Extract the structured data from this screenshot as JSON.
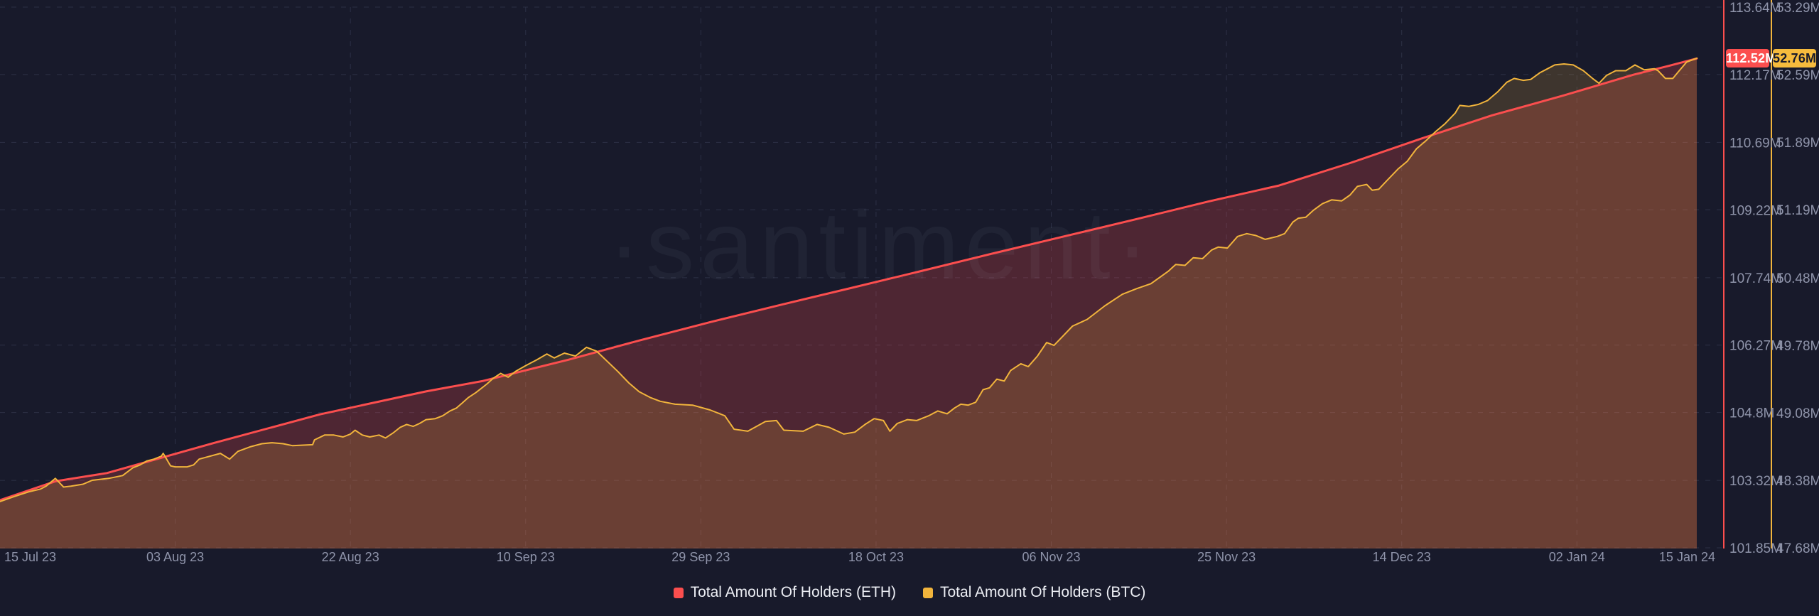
{
  "watermark": "·santiment·",
  "legend": [
    {
      "label": "Total Amount Of Holders (ETH)",
      "color": "#fb4e4e"
    },
    {
      "label": "Total Amount Of Holders (BTC)",
      "color": "#f1b43c"
    }
  ],
  "badges": {
    "eth": {
      "text": "112.52M",
      "bg": "#fb4e4e",
      "fg": "#ffffff"
    },
    "btc": {
      "text": "52.76M",
      "bg": "#f6bb3d",
      "fg": "#181a2b"
    }
  },
  "colors": {
    "background": "#181a2b",
    "grid": "#2c3046",
    "axis_text": "#8f94aa",
    "eth_line": "#fb4e4e",
    "btc_line": "#f1b43c",
    "watermark": "rgba(200,206,240,0.05)"
  },
  "chart_data": {
    "type": "area",
    "grid": true,
    "legend_position": "bottom",
    "x_axis": {
      "start_date": "2023-07-15",
      "end_date": "2024-01-15",
      "range_days": 184,
      "tick_days": [
        0,
        19,
        38,
        57,
        76,
        95,
        114,
        133,
        152,
        171,
        184
      ],
      "tick_labels": [
        "15 Jul 23",
        "03 Aug 23",
        "22 Aug 23",
        "10 Sep 23",
        "29 Sep 23",
        "18 Oct 23",
        "06 Nov 23",
        "25 Nov 23",
        "14 Dec 23",
        "02 Jan 24",
        "15 Jan 24"
      ]
    },
    "y_axis_eth": {
      "side": "right-inner",
      "unit": "M",
      "tick_labels": [
        "113.64M",
        "112.17M",
        "110.69M",
        "109.22M",
        "107.74M",
        "106.27M",
        "104.8M",
        "103.32M",
        "101.85M"
      ],
      "tick_values": [
        113.64,
        112.17,
        110.69,
        109.22,
        107.74,
        106.27,
        104.8,
        103.32,
        101.85
      ],
      "last_value": 112.52,
      "last_value_label": "112.52M"
    },
    "y_axis_btc": {
      "side": "right-outer",
      "unit": "M",
      "tick_labels": [
        "53.29M",
        "52.59M",
        "51.89M",
        "51.19M",
        "50.48M",
        "49.78M",
        "49.08M",
        "48.38M",
        "47.68M"
      ],
      "tick_values": [
        53.29,
        52.59,
        51.89,
        51.19,
        50.48,
        49.78,
        49.08,
        48.38,
        47.68
      ],
      "last_value": 52.76,
      "last_value_label": "52.76M"
    },
    "series": [
      {
        "name": "Total Amount Of Holders (ETH)",
        "axis": "eth",
        "color": "#fb4e4e",
        "fill_opacity": 0.24,
        "points": [
          [
            0,
            102.89
          ],
          [
            6,
            103.3
          ],
          [
            11.6,
            103.48
          ],
          [
            23.1,
            104.13
          ],
          [
            34.7,
            104.76
          ],
          [
            46.2,
            105.26
          ],
          [
            52.4,
            105.49
          ],
          [
            61.6,
            105.95
          ],
          [
            69.3,
            106.37
          ],
          [
            77,
            106.77
          ],
          [
            84.7,
            107.15
          ],
          [
            92.4,
            107.52
          ],
          [
            100.2,
            107.9
          ],
          [
            107.9,
            108.28
          ],
          [
            115.6,
            108.65
          ],
          [
            123.3,
            109.02
          ],
          [
            131,
            109.4
          ],
          [
            138.7,
            109.75
          ],
          [
            146.4,
            110.24
          ],
          [
            154.1,
            110.77
          ],
          [
            161.8,
            111.28
          ],
          [
            169.5,
            111.71
          ],
          [
            177.2,
            112.17
          ],
          [
            181,
            112.36
          ],
          [
            184,
            112.52
          ]
        ]
      },
      {
        "name": "Total Amount Of Holders (BTC)",
        "axis": "btc",
        "color": "#f1b43c",
        "fill_opacity": 0.18,
        "points": [
          [
            0,
            48.16
          ],
          [
            1.5,
            48.21
          ],
          [
            3.1,
            48.26
          ],
          [
            4.4,
            48.29
          ],
          [
            5,
            48.32
          ],
          [
            6,
            48.4
          ],
          [
            6.9,
            48.31
          ],
          [
            7.7,
            48.32
          ],
          [
            9,
            48.34
          ],
          [
            10,
            48.38
          ],
          [
            11.8,
            48.4
          ],
          [
            13.3,
            48.43
          ],
          [
            14.4,
            48.51
          ],
          [
            15.2,
            48.54
          ],
          [
            15.9,
            48.58
          ],
          [
            16.7,
            48.6
          ],
          [
            17.5,
            48.63
          ],
          [
            17.7,
            48.66
          ],
          [
            18.5,
            48.53
          ],
          [
            19,
            48.52
          ],
          [
            20.3,
            48.52
          ],
          [
            21,
            48.54
          ],
          [
            21.6,
            48.6
          ],
          [
            23.9,
            48.66
          ],
          [
            24.9,
            48.6
          ],
          [
            25.8,
            48.68
          ],
          [
            27.2,
            48.73
          ],
          [
            28.4,
            48.76
          ],
          [
            29.5,
            48.77
          ],
          [
            30.7,
            48.76
          ],
          [
            31.7,
            48.74
          ],
          [
            33.9,
            48.75
          ],
          [
            34.1,
            48.8
          ],
          [
            35.2,
            48.85
          ],
          [
            36.2,
            48.85
          ],
          [
            37.2,
            48.83
          ],
          [
            38,
            48.86
          ],
          [
            38.5,
            48.9
          ],
          [
            39.3,
            48.85
          ],
          [
            40.1,
            48.83
          ],
          [
            41.1,
            48.85
          ],
          [
            41.8,
            48.82
          ],
          [
            42.6,
            48.87
          ],
          [
            43.4,
            48.93
          ],
          [
            44.1,
            48.96
          ],
          [
            44.8,
            48.94
          ],
          [
            45.5,
            48.97
          ],
          [
            46.2,
            49.01
          ],
          [
            47.2,
            49.02
          ],
          [
            48,
            49.05
          ],
          [
            48.8,
            49.1
          ],
          [
            49.5,
            49.13
          ],
          [
            50.1,
            49.18
          ],
          [
            50.8,
            49.24
          ],
          [
            51.6,
            49.29
          ],
          [
            52.4,
            49.35
          ],
          [
            52.8,
            49.38
          ],
          [
            53.5,
            49.44
          ],
          [
            54.3,
            49.49
          ],
          [
            55.1,
            49.45
          ],
          [
            55.9,
            49.51
          ],
          [
            57,
            49.57
          ],
          [
            58.2,
            49.63
          ],
          [
            59.3,
            49.69
          ],
          [
            60.1,
            49.65
          ],
          [
            61.2,
            49.7
          ],
          [
            62.4,
            49.67
          ],
          [
            63.6,
            49.76
          ],
          [
            64.7,
            49.72
          ],
          [
            65.9,
            49.61
          ],
          [
            67,
            49.51
          ],
          [
            68.2,
            49.39
          ],
          [
            69.3,
            49.3
          ],
          [
            70.5,
            49.24
          ],
          [
            71.6,
            49.2
          ],
          [
            73.2,
            49.17
          ],
          [
            75.1,
            49.16
          ],
          [
            77,
            49.11
          ],
          [
            78.6,
            49.05
          ],
          [
            79.6,
            48.91
          ],
          [
            81.1,
            48.89
          ],
          [
            83,
            48.99
          ],
          [
            84.2,
            49.0
          ],
          [
            85,
            48.9
          ],
          [
            87.1,
            48.89
          ],
          [
            88.6,
            48.96
          ],
          [
            89.9,
            48.93
          ],
          [
            91.5,
            48.86
          ],
          [
            92.7,
            48.88
          ],
          [
            93.8,
            48.96
          ],
          [
            94.8,
            49.02
          ],
          [
            95.8,
            49.0
          ],
          [
            96.5,
            48.89
          ],
          [
            97.3,
            48.97
          ],
          [
            98.4,
            49.01
          ],
          [
            99.4,
            49.0
          ],
          [
            100.7,
            49.05
          ],
          [
            101.7,
            49.1
          ],
          [
            102.7,
            49.07
          ],
          [
            103.5,
            49.13
          ],
          [
            104.2,
            49.17
          ],
          [
            105,
            49.16
          ],
          [
            105.8,
            49.19
          ],
          [
            106.6,
            49.32
          ],
          [
            107.3,
            49.34
          ],
          [
            108.1,
            49.43
          ],
          [
            108.9,
            49.41
          ],
          [
            109.6,
            49.52
          ],
          [
            110.7,
            49.59
          ],
          [
            111.5,
            49.56
          ],
          [
            112.5,
            49.67
          ],
          [
            113.5,
            49.81
          ],
          [
            114.3,
            49.78
          ],
          [
            115.3,
            49.88
          ],
          [
            116.3,
            49.98
          ],
          [
            117.9,
            50.05
          ],
          [
            119.8,
            50.19
          ],
          [
            121.7,
            50.31
          ],
          [
            123.3,
            50.37
          ],
          [
            124.8,
            50.42
          ],
          [
            126.7,
            50.55
          ],
          [
            127.5,
            50.62
          ],
          [
            128.5,
            50.61
          ],
          [
            129.4,
            50.69
          ],
          [
            130.4,
            50.68
          ],
          [
            131.4,
            50.77
          ],
          [
            132.1,
            50.8
          ],
          [
            133.1,
            50.79
          ],
          [
            134.2,
            50.91
          ],
          [
            135.2,
            50.94
          ],
          [
            136.2,
            50.92
          ],
          [
            137.2,
            50.88
          ],
          [
            138.5,
            50.91
          ],
          [
            139.3,
            50.94
          ],
          [
            140.2,
            51.06
          ],
          [
            140.8,
            51.1
          ],
          [
            141.6,
            51.11
          ],
          [
            142.4,
            51.18
          ],
          [
            143.4,
            51.25
          ],
          [
            144.4,
            51.29
          ],
          [
            145.5,
            51.28
          ],
          [
            146.4,
            51.34
          ],
          [
            147.2,
            51.43
          ],
          [
            148.2,
            51.45
          ],
          [
            148.8,
            51.39
          ],
          [
            149.5,
            51.4
          ],
          [
            150.5,
            51.5
          ],
          [
            151.6,
            51.61
          ],
          [
            152.6,
            51.69
          ],
          [
            153.6,
            51.82
          ],
          [
            154.7,
            51.91
          ],
          [
            155.7,
            52.0
          ],
          [
            156.7,
            52.08
          ],
          [
            157.8,
            52.19
          ],
          [
            158.3,
            52.27
          ],
          [
            159.3,
            52.26
          ],
          [
            160.3,
            52.28
          ],
          [
            161.3,
            52.32
          ],
          [
            162.4,
            52.41
          ],
          [
            163.4,
            52.51
          ],
          [
            164.2,
            52.55
          ],
          [
            165.2,
            52.53
          ],
          [
            166,
            52.54
          ],
          [
            167,
            52.61
          ],
          [
            167.8,
            52.65
          ],
          [
            168.6,
            52.69
          ],
          [
            169.6,
            52.7
          ],
          [
            170.6,
            52.69
          ],
          [
            171.7,
            52.63
          ],
          [
            172.7,
            52.55
          ],
          [
            173.4,
            52.5
          ],
          [
            174.2,
            52.58
          ],
          [
            175.2,
            52.63
          ],
          [
            176.3,
            52.63
          ],
          [
            177.3,
            52.69
          ],
          [
            178.3,
            52.64
          ],
          [
            179.4,
            52.65
          ],
          [
            179.8,
            52.63
          ],
          [
            180.6,
            52.55
          ],
          [
            181.4,
            52.55
          ],
          [
            182.1,
            52.63
          ],
          [
            182.9,
            52.72
          ],
          [
            184,
            52.76
          ]
        ]
      }
    ]
  }
}
